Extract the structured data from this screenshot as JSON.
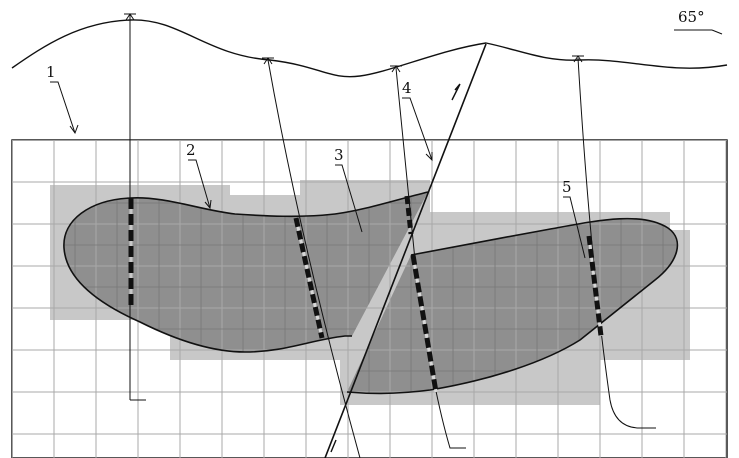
{
  "labels": {
    "l1": "1",
    "l2": "2",
    "l3": "3",
    "l4": "4",
    "l5": "5",
    "direction": "65°"
  },
  "colors": {
    "ore": "#8f8f8f",
    "block_halo": "#c8c8c8",
    "grid": "#a8a8a8",
    "line": "#111111"
  }
}
